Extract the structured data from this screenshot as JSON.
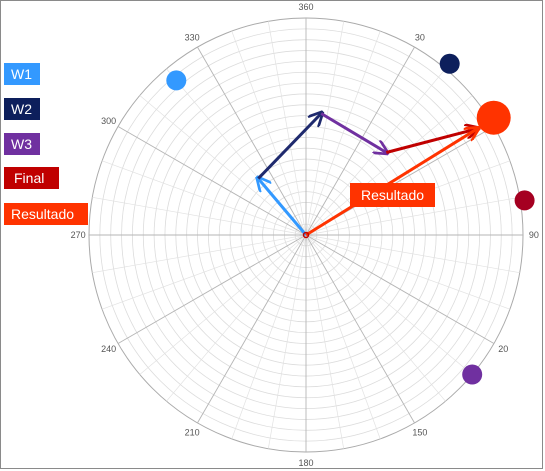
{
  "chart_data": {
    "type": "polar",
    "angular_ticks": [
      "360",
      "30",
      "90",
      "150",
      "180",
      "210",
      "240",
      "270",
      "300",
      "330"
    ],
    "angular_tick_angles": [
      0,
      30,
      90,
      150,
      180,
      210,
      240,
      270,
      300,
      330
    ],
    "partial_tick": {
      "text": "20",
      "angle": 120
    },
    "r_max": 10,
    "grid": true,
    "vectors": [
      {
        "name": "W1",
        "color": "#3399ff",
        "from": [
          0,
          0
        ],
        "to": [
          -2.2,
          2.6
        ]
      },
      {
        "name": "W2",
        "color": "#1f2a6e",
        "from": [
          -2.2,
          2.6
        ],
        "to": [
          0.7,
          5.6
        ]
      },
      {
        "name": "W3",
        "color": "#7030a0",
        "from": [
          0.7,
          5.6
        ],
        "to": [
          3.7,
          3.8
        ]
      },
      {
        "name": "Final",
        "color": "#c00000",
        "from": [
          3.7,
          3.8
        ],
        "to": [
          7.9,
          4.9
        ]
      },
      {
        "name": "Resultado",
        "color": "#ff3300",
        "from": [
          0,
          0
        ],
        "to": [
          7.9,
          4.9
        ]
      }
    ],
    "markers": [
      {
        "name": "W1",
        "color": "#3399ff",
        "angle": 320,
        "r": 9.3,
        "size": "medium"
      },
      {
        "name": "W2",
        "color": "#0d1f5c",
        "angle": 40,
        "r": 10.3,
        "size": "medium"
      },
      {
        "name": "W3",
        "color": "#7030a0",
        "angle": 130,
        "r": 10.0,
        "size": "medium"
      },
      {
        "name": "Final",
        "color": "#a50021",
        "angle": 81,
        "r": 10.2,
        "size": "medium"
      },
      {
        "name": "Resultado",
        "color": "#ff3300",
        "angle": 58,
        "r": 10.2,
        "size": "large"
      }
    ],
    "annotation": {
      "text": "Resultado",
      "color": "#ff3300"
    },
    "legend": {
      "placement": "left",
      "items": [
        {
          "label": "W1",
          "color": "#3399ff"
        },
        {
          "label": "W2",
          "color": "#0d1f5c"
        },
        {
          "label": "W3",
          "color": "#7030a0"
        },
        {
          "label": "Final",
          "color": "#c00000"
        },
        {
          "label": "Resultado",
          "color": "#ff3300"
        }
      ]
    }
  }
}
